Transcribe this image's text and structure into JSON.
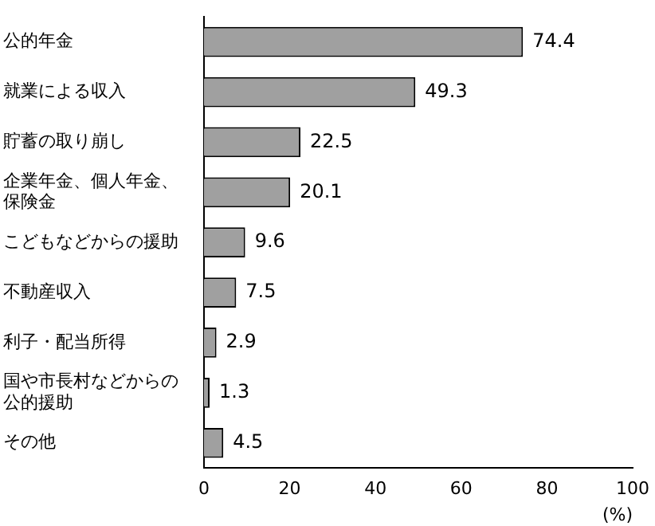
{
  "chart_data": {
    "type": "bar",
    "orientation": "horizontal",
    "categories": [
      "公的年金",
      "就業による収入",
      "貯蓄の取り崩し",
      "企業年金、個人年金、保険金",
      "こどもなどからの援助",
      "不動産収入",
      "利子・配当所得",
      "国や市長村などからの公的援助",
      "その他"
    ],
    "values": [
      74.4,
      49.3,
      22.5,
      20.1,
      9.6,
      7.5,
      2.9,
      1.3,
      4.5
    ],
    "color": "#a0a0a0",
    "xlim": [
      0,
      100
    ],
    "xticks": [
      0,
      20,
      40,
      60,
      80,
      100
    ],
    "xlabel": "(%)",
    "data_labels": true,
    "grid": false,
    "legend": false
  }
}
